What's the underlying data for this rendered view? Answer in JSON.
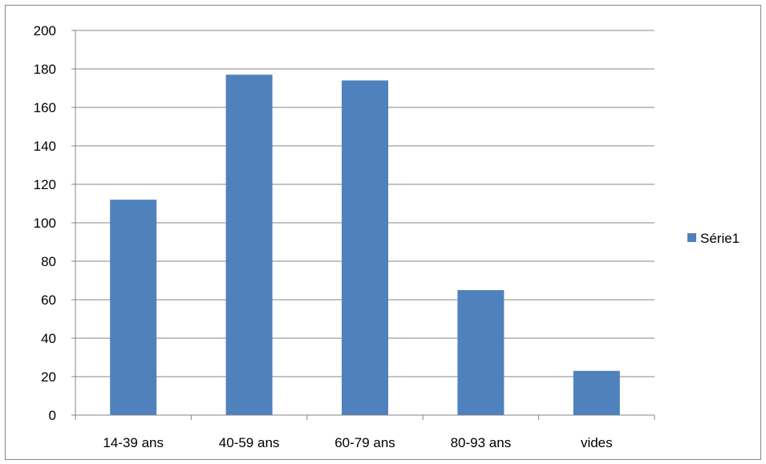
{
  "chart_data": {
    "type": "bar",
    "categories": [
      "14-39 ans",
      "40-59 ans",
      "60-79 ans",
      "80-93 ans",
      "vides"
    ],
    "series": [
      {
        "name": "Série1",
        "values": [
          112,
          177,
          174,
          65,
          23
        ],
        "color": "#4F81BD"
      }
    ],
    "y_ticks": [
      "0",
      "20",
      "40",
      "60",
      "80",
      "100",
      "120",
      "140",
      "160",
      "180",
      "200"
    ],
    "ylim": [
      0,
      200
    ],
    "grid": true,
    "legend": "right",
    "title": "",
    "xlabel": "",
    "ylabel": ""
  }
}
